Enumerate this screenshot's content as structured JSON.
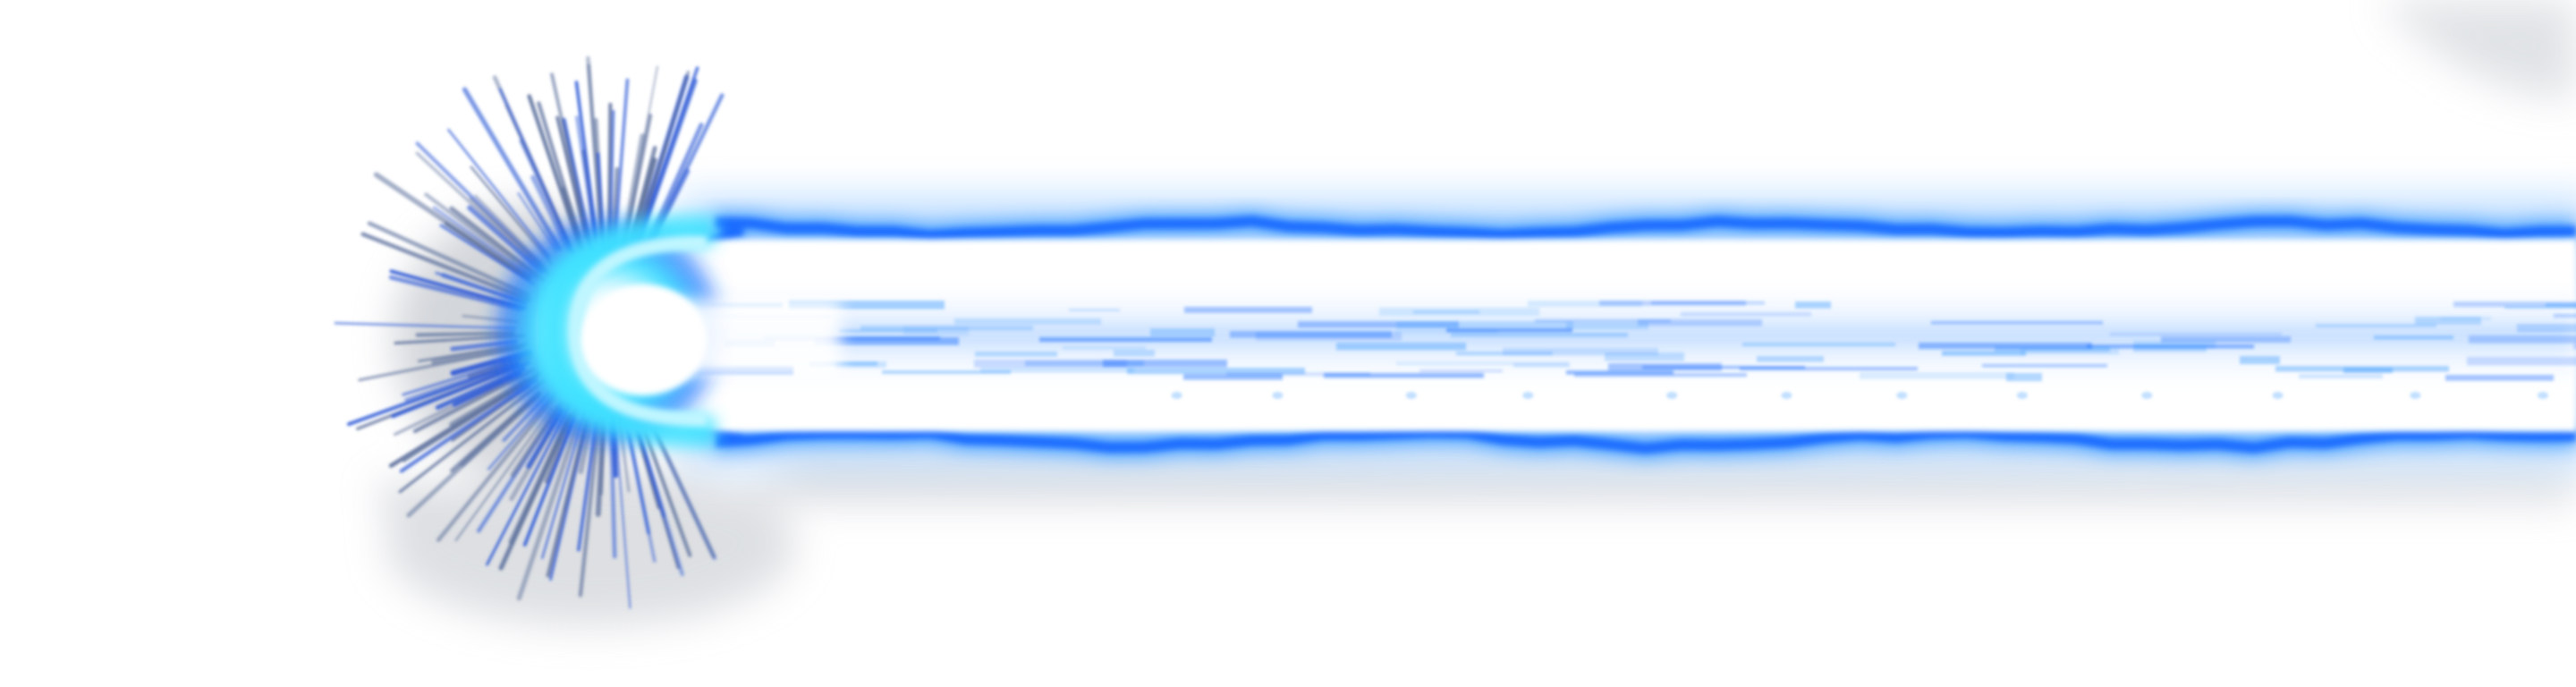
{
  "scene": {
    "subject": "energy-beam",
    "colors": {
      "background": "#ffffff",
      "beam_edge": "#1a6dff",
      "beam_glow": "#4da3ff",
      "core_light": "#cfe6ff",
      "burst_cyan": "#3fe3ff",
      "spikes": "#2f5bd6",
      "shadow": "#b7bcc4"
    }
  }
}
